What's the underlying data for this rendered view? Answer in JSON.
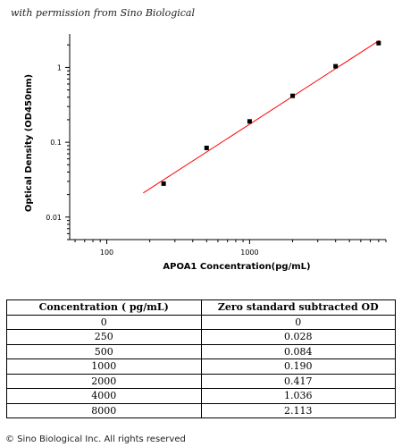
{
  "credit_text": "with permission from Sino Biological",
  "chart_data": {
    "type": "scatter",
    "xlabel": "APOA1  Concentration(pg/mL)",
    "ylabel": "Optical Density (OD450nm)",
    "x_scale": "log",
    "y_scale": "log",
    "xlim": [
      55,
      9000
    ],
    "ylim": [
      0.005,
      2.8
    ],
    "x_ticks": [
      100,
      1000
    ],
    "y_ticks": [
      0.01,
      0.1,
      1
    ],
    "x_tick_labels": [
      "100",
      "1000"
    ],
    "y_tick_labels": [
      "0.01",
      "0.1",
      "1"
    ],
    "series": [
      {
        "x": [
          250,
          500,
          1000,
          2000,
          4000,
          8000
        ],
        "y": [
          0.028,
          0.084,
          0.19,
          0.417,
          1.036,
          2.113
        ],
        "marker": "square",
        "color": "#000000"
      }
    ],
    "fit_line": {
      "x": [
        180,
        8100
      ],
      "y": [
        0.021,
        2.3
      ],
      "color": "#ff0000"
    },
    "grid": false
  },
  "table": {
    "headers": [
      "Concentration ( pg/mL)",
      "Zero standard subtracted OD"
    ],
    "rows": [
      [
        "0",
        "0"
      ],
      [
        "250",
        "0.028"
      ],
      [
        "500",
        "0.084"
      ],
      [
        "1000",
        "0.190"
      ],
      [
        "2000",
        "0.417"
      ],
      [
        "4000",
        "1.036"
      ],
      [
        "8000",
        "2.113"
      ]
    ]
  },
  "copyright": "© Sino Biological Inc. All rights reserved"
}
